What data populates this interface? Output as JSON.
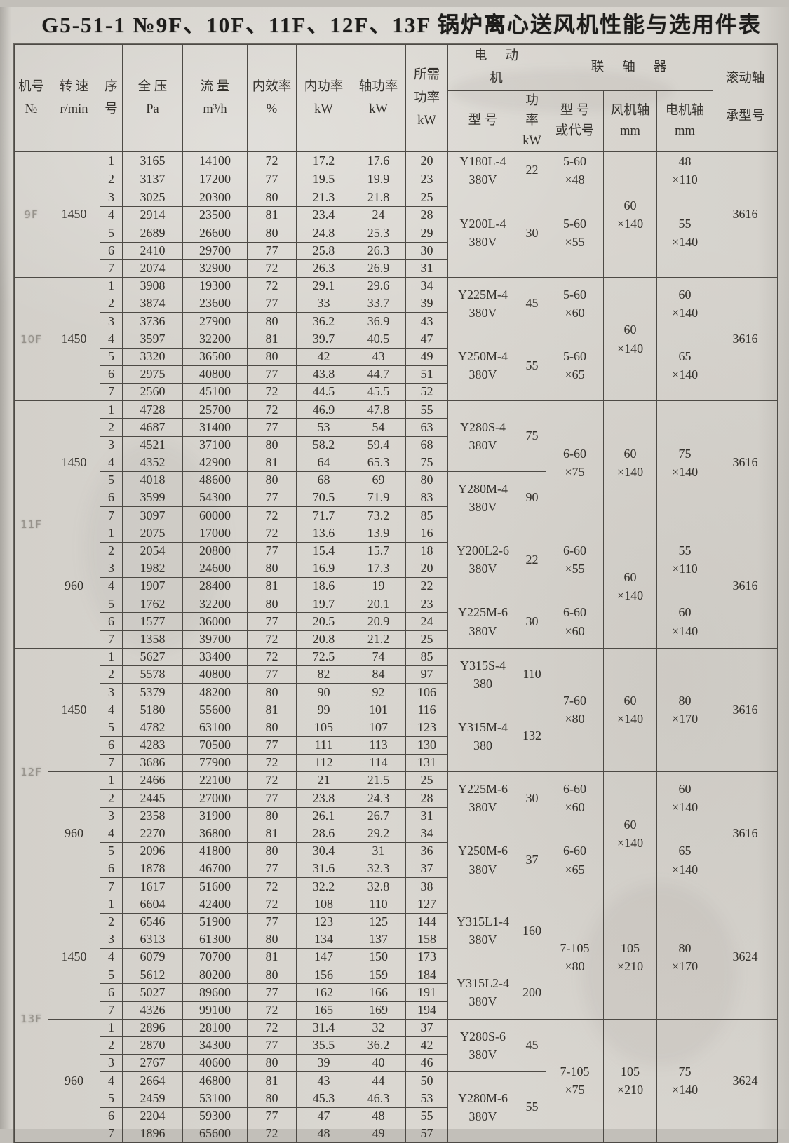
{
  "title": "G5-51-1 №9F、10F、11F、12F、13F 锅炉离心送风机性能与选用件表",
  "header": {
    "machine_no": [
      "机号",
      "№"
    ],
    "speed": [
      "转 速",
      "r/min"
    ],
    "seq": [
      "序",
      "号"
    ],
    "pressure": [
      "全 压",
      "Pa"
    ],
    "flow": [
      "流 量",
      "m³/h"
    ],
    "efficiency": [
      "内效率",
      "%"
    ],
    "inner_power": [
      "内功率",
      "kW"
    ],
    "shaft_power": [
      "轴功率",
      "kW"
    ],
    "required_power": [
      "所需",
      "功率",
      "kW"
    ],
    "motor_group": "电动机",
    "coupling_group": "联轴器",
    "motor_model": "型  号",
    "motor_power": [
      "功率",
      "kW"
    ],
    "coupling_model": [
      "型  号",
      "或代号"
    ],
    "fan_shaft": [
      "风机轴",
      "mm"
    ],
    "motor_shaft": [
      "电机轴",
      "mm"
    ],
    "bearing": [
      "滚动轴",
      "承型号"
    ]
  },
  "sections": [
    {
      "machine": "9F",
      "machine_span": 1,
      "speed": "1450",
      "bearing": "3616",
      "fan_shaft": [
        "60",
        "×140"
      ],
      "rows": [
        {
          "seq": "1",
          "pressure": "3165",
          "flow": "14100",
          "eff": "72",
          "inner": "17.2",
          "shaft": "17.6",
          "required": "20"
        },
        {
          "seq": "2",
          "pressure": "3137",
          "flow": "17200",
          "eff": "77",
          "inner": "19.5",
          "shaft": "19.9",
          "required": "23"
        },
        {
          "seq": "3",
          "pressure": "3025",
          "flow": "20300",
          "eff": "80",
          "inner": "21.3",
          "shaft": "21.8",
          "required": "25"
        },
        {
          "seq": "4",
          "pressure": "2914",
          "flow": "23500",
          "eff": "81",
          "inner": "23.4",
          "shaft": "24",
          "required": "28"
        },
        {
          "seq": "5",
          "pressure": "2689",
          "flow": "26600",
          "eff": "80",
          "inner": "24.8",
          "shaft": "25.3",
          "required": "29"
        },
        {
          "seq": "6",
          "pressure": "2410",
          "flow": "29700",
          "eff": "77",
          "inner": "25.8",
          "shaft": "26.3",
          "required": "30"
        },
        {
          "seq": "7",
          "pressure": "2074",
          "flow": "32900",
          "eff": "72",
          "inner": "26.3",
          "shaft": "26.9",
          "required": "31"
        }
      ],
      "subs": [
        {
          "rows": 2,
          "motor": [
            "Y180L-4",
            "380V"
          ],
          "power": "22",
          "coupling": [
            "5-60",
            "×48"
          ],
          "motor_shaft": [
            "48",
            "×110"
          ]
        },
        {
          "rows": 5,
          "motor": [
            "Y200L-4",
            "380V"
          ],
          "power": "30",
          "coupling": [
            "5-60",
            "×55"
          ],
          "motor_shaft": [
            "55",
            "×140"
          ]
        }
      ]
    },
    {
      "machine": "10F",
      "machine_span": 1,
      "speed": "1450",
      "bearing": "3616",
      "fan_shaft": [
        "60",
        "×140"
      ],
      "rows": [
        {
          "seq": "1",
          "pressure": "3908",
          "flow": "19300",
          "eff": "72",
          "inner": "29.1",
          "shaft": "29.6",
          "required": "34"
        },
        {
          "seq": "2",
          "pressure": "3874",
          "flow": "23600",
          "eff": "77",
          "inner": "33",
          "shaft": "33.7",
          "required": "39"
        },
        {
          "seq": "3",
          "pressure": "3736",
          "flow": "27900",
          "eff": "80",
          "inner": "36.2",
          "shaft": "36.9",
          "required": "43"
        },
        {
          "seq": "4",
          "pressure": "3597",
          "flow": "32200",
          "eff": "81",
          "inner": "39.7",
          "shaft": "40.5",
          "required": "47"
        },
        {
          "seq": "5",
          "pressure": "3320",
          "flow": "36500",
          "eff": "80",
          "inner": "42",
          "shaft": "43",
          "required": "49"
        },
        {
          "seq": "6",
          "pressure": "2975",
          "flow": "40800",
          "eff": "77",
          "inner": "43.8",
          "shaft": "44.7",
          "required": "51"
        },
        {
          "seq": "7",
          "pressure": "2560",
          "flow": "45100",
          "eff": "72",
          "inner": "44.5",
          "shaft": "45.5",
          "required": "52"
        }
      ],
      "subs": [
        {
          "rows": 3,
          "motor": [
            "Y225M-4",
            "380V"
          ],
          "power": "45",
          "coupling": [
            "5-60",
            "×60"
          ],
          "motor_shaft": [
            "60",
            "×140"
          ]
        },
        {
          "rows": 4,
          "motor": [
            "Y250M-4",
            "380V"
          ],
          "power": "55",
          "coupling": [
            "5-60",
            "×65"
          ],
          "motor_shaft": [
            "65",
            "×140"
          ]
        }
      ]
    },
    {
      "machine": "11F",
      "machine_span": 2,
      "speed": "1450",
      "bearing": "3616",
      "fan_shaft": [
        "60",
        "×140"
      ],
      "coupling_span": [
        "6-60",
        "×75"
      ],
      "motor_shaft_span": [
        "75",
        "×140"
      ],
      "rows": [
        {
          "seq": "1",
          "pressure": "4728",
          "flow": "25700",
          "eff": "72",
          "inner": "46.9",
          "shaft": "47.8",
          "required": "55"
        },
        {
          "seq": "2",
          "pressure": "4687",
          "flow": "31400",
          "eff": "77",
          "inner": "53",
          "shaft": "54",
          "required": "63"
        },
        {
          "seq": "3",
          "pressure": "4521",
          "flow": "37100",
          "eff": "80",
          "inner": "58.2",
          "shaft": "59.4",
          "required": "68"
        },
        {
          "seq": "4",
          "pressure": "4352",
          "flow": "42900",
          "eff": "81",
          "inner": "64",
          "shaft": "65.3",
          "required": "75"
        },
        {
          "seq": "5",
          "pressure": "4018",
          "flow": "48600",
          "eff": "80",
          "inner": "68",
          "shaft": "69",
          "required": "80"
        },
        {
          "seq": "6",
          "pressure": "3599",
          "flow": "54300",
          "eff": "77",
          "inner": "70.5",
          "shaft": "71.9",
          "required": "83"
        },
        {
          "seq": "7",
          "pressure": "3097",
          "flow": "60000",
          "eff": "72",
          "inner": "71.7",
          "shaft": "73.2",
          "required": "85"
        }
      ],
      "subs": [
        {
          "rows": 4,
          "motor": [
            "Y280S-4",
            "380V"
          ],
          "power": "75"
        },
        {
          "rows": 3,
          "motor": [
            "Y280M-4",
            "380V"
          ],
          "power": "90"
        }
      ]
    },
    {
      "speed": "960",
      "bearing": "3616",
      "fan_shaft": [
        "60",
        "×140"
      ],
      "rows": [
        {
          "seq": "1",
          "pressure": "2075",
          "flow": "17000",
          "eff": "72",
          "inner": "13.6",
          "shaft": "13.9",
          "required": "16"
        },
        {
          "seq": "2",
          "pressure": "2054",
          "flow": "20800",
          "eff": "77",
          "inner": "15.4",
          "shaft": "15.7",
          "required": "18"
        },
        {
          "seq": "3",
          "pressure": "1982",
          "flow": "24600",
          "eff": "80",
          "inner": "16.9",
          "shaft": "17.3",
          "required": "20"
        },
        {
          "seq": "4",
          "pressure": "1907",
          "flow": "28400",
          "eff": "81",
          "inner": "18.6",
          "shaft": "19",
          "required": "22"
        },
        {
          "seq": "5",
          "pressure": "1762",
          "flow": "32200",
          "eff": "80",
          "inner": "19.7",
          "shaft": "20.1",
          "required": "23"
        },
        {
          "seq": "6",
          "pressure": "1577",
          "flow": "36000",
          "eff": "77",
          "inner": "20.5",
          "shaft": "20.9",
          "required": "24"
        },
        {
          "seq": "7",
          "pressure": "1358",
          "flow": "39700",
          "eff": "72",
          "inner": "20.8",
          "shaft": "21.2",
          "required": "25"
        }
      ],
      "subs": [
        {
          "rows": 4,
          "motor": [
            "Y200L2-6",
            "380V"
          ],
          "power": "22",
          "coupling": [
            "6-60",
            "×55"
          ],
          "motor_shaft": [
            "55",
            "×110"
          ]
        },
        {
          "rows": 3,
          "motor": [
            "Y225M-6",
            "380V"
          ],
          "power": "30",
          "coupling": [
            "6-60",
            "×60"
          ],
          "motor_shaft": [
            "60",
            "×140"
          ]
        }
      ]
    },
    {
      "machine": "12F",
      "machine_span": 2,
      "speed": "1450",
      "bearing": "3616",
      "fan_shaft": [
        "60",
        "×140"
      ],
      "coupling_span": [
        "7-60",
        "×80"
      ],
      "motor_shaft_span": [
        "80",
        "×170"
      ],
      "rows": [
        {
          "seq": "1",
          "pressure": "5627",
          "flow": "33400",
          "eff": "72",
          "inner": "72.5",
          "shaft": "74",
          "required": "85"
        },
        {
          "seq": "2",
          "pressure": "5578",
          "flow": "40800",
          "eff": "77",
          "inner": "82",
          "shaft": "84",
          "required": "97"
        },
        {
          "seq": "3",
          "pressure": "5379",
          "flow": "48200",
          "eff": "80",
          "inner": "90",
          "shaft": "92",
          "required": "106"
        },
        {
          "seq": "4",
          "pressure": "5180",
          "flow": "55600",
          "eff": "81",
          "inner": "99",
          "shaft": "101",
          "required": "116"
        },
        {
          "seq": "5",
          "pressure": "4782",
          "flow": "63100",
          "eff": "80",
          "inner": "105",
          "shaft": "107",
          "required": "123"
        },
        {
          "seq": "6",
          "pressure": "4283",
          "flow": "70500",
          "eff": "77",
          "inner": "111",
          "shaft": "113",
          "required": "130"
        },
        {
          "seq": "7",
          "pressure": "3686",
          "flow": "77900",
          "eff": "72",
          "inner": "112",
          "shaft": "114",
          "required": "131"
        }
      ],
      "subs": [
        {
          "rows": 3,
          "motor": [
            "Y315S-4",
            "380"
          ],
          "power": "110"
        },
        {
          "rows": 4,
          "motor": [
            "Y315M-4",
            "380"
          ],
          "power": "132"
        }
      ]
    },
    {
      "speed": "960",
      "bearing": "3616",
      "fan_shaft": [
        "60",
        "×140"
      ],
      "rows": [
        {
          "seq": "1",
          "pressure": "2466",
          "flow": "22100",
          "eff": "72",
          "inner": "21",
          "shaft": "21.5",
          "required": "25"
        },
        {
          "seq": "2",
          "pressure": "2445",
          "flow": "27000",
          "eff": "77",
          "inner": "23.8",
          "shaft": "24.3",
          "required": "28"
        },
        {
          "seq": "3",
          "pressure": "2358",
          "flow": "31900",
          "eff": "80",
          "inner": "26.1",
          "shaft": "26.7",
          "required": "31"
        },
        {
          "seq": "4",
          "pressure": "2270",
          "flow": "36800",
          "eff": "81",
          "inner": "28.6",
          "shaft": "29.2",
          "required": "34"
        },
        {
          "seq": "5",
          "pressure": "2096",
          "flow": "41800",
          "eff": "80",
          "inner": "30.4",
          "shaft": "31",
          "required": "36"
        },
        {
          "seq": "6",
          "pressure": "1878",
          "flow": "46700",
          "eff": "77",
          "inner": "31.6",
          "shaft": "32.3",
          "required": "37"
        },
        {
          "seq": "7",
          "pressure": "1617",
          "flow": "51600",
          "eff": "72",
          "inner": "32.2",
          "shaft": "32.8",
          "required": "38"
        }
      ],
      "subs": [
        {
          "rows": 3,
          "motor": [
            "Y225M-6",
            "380V"
          ],
          "power": "30",
          "coupling": [
            "6-60",
            "×60"
          ],
          "motor_shaft": [
            "60",
            "×140"
          ]
        },
        {
          "rows": 4,
          "motor": [
            "Y250M-6",
            "380V"
          ],
          "power": "37",
          "coupling": [
            "6-60",
            "×65"
          ],
          "motor_shaft": [
            "65",
            "×140"
          ]
        }
      ]
    },
    {
      "machine": "13F",
      "machine_span": 2,
      "speed": "1450",
      "bearing": "3624",
      "fan_shaft": [
        "105",
        "×210"
      ],
      "coupling_span": [
        "7-105",
        "×80"
      ],
      "motor_shaft_span": [
        "80",
        "×170"
      ],
      "rows": [
        {
          "seq": "1",
          "pressure": "6604",
          "flow": "42400",
          "eff": "72",
          "inner": "108",
          "shaft": "110",
          "required": "127"
        },
        {
          "seq": "2",
          "pressure": "6546",
          "flow": "51900",
          "eff": "77",
          "inner": "123",
          "shaft": "125",
          "required": "144"
        },
        {
          "seq": "3",
          "pressure": "6313",
          "flow": "61300",
          "eff": "80",
          "inner": "134",
          "shaft": "137",
          "required": "158"
        },
        {
          "seq": "4",
          "pressure": "6079",
          "flow": "70700",
          "eff": "81",
          "inner": "147",
          "shaft": "150",
          "required": "173"
        },
        {
          "seq": "5",
          "pressure": "5612",
          "flow": "80200",
          "eff": "80",
          "inner": "156",
          "shaft": "159",
          "required": "184"
        },
        {
          "seq": "6",
          "pressure": "5027",
          "flow": "89600",
          "eff": "77",
          "inner": "162",
          "shaft": "166",
          "required": "191"
        },
        {
          "seq": "7",
          "pressure": "4326",
          "flow": "99100",
          "eff": "72",
          "inner": "165",
          "shaft": "169",
          "required": "194"
        }
      ],
      "subs": [
        {
          "rows": 4,
          "motor": [
            "Y315L1-4",
            "380V"
          ],
          "power": "160"
        },
        {
          "rows": 3,
          "motor": [
            "Y315L2-4",
            "380V"
          ],
          "power": "200"
        }
      ]
    },
    {
      "speed": "960",
      "bearing": "3624",
      "fan_shaft": [
        "105",
        "×210"
      ],
      "coupling_span": [
        "7-105",
        "×75"
      ],
      "motor_shaft_span": [
        "75",
        "×140"
      ],
      "rows": [
        {
          "seq": "1",
          "pressure": "2896",
          "flow": "28100",
          "eff": "72",
          "inner": "31.4",
          "shaft": "32",
          "required": "37"
        },
        {
          "seq": "2",
          "pressure": "2870",
          "flow": "34300",
          "eff": "77",
          "inner": "35.5",
          "shaft": "36.2",
          "required": "42"
        },
        {
          "seq": "3",
          "pressure": "2767",
          "flow": "40600",
          "eff": "80",
          "inner": "39",
          "shaft": "40",
          "required": "46"
        },
        {
          "seq": "4",
          "pressure": "2664",
          "flow": "46800",
          "eff": "81",
          "inner": "43",
          "shaft": "44",
          "required": "50"
        },
        {
          "seq": "5",
          "pressure": "2459",
          "flow": "53100",
          "eff": "80",
          "inner": "45.3",
          "shaft": "46.3",
          "required": "53"
        },
        {
          "seq": "6",
          "pressure": "2204",
          "flow": "59300",
          "eff": "77",
          "inner": "47",
          "shaft": "48",
          "required": "55"
        },
        {
          "seq": "7",
          "pressure": "1896",
          "flow": "65600",
          "eff": "72",
          "inner": "48",
          "shaft": "49",
          "required": "57"
        }
      ],
      "subs": [
        {
          "rows": 3,
          "motor": [
            "Y280S-6",
            "380V"
          ],
          "power": "45"
        },
        {
          "rows": 4,
          "motor": [
            "Y280M-6",
            "380V"
          ],
          "power": "55"
        }
      ]
    }
  ]
}
